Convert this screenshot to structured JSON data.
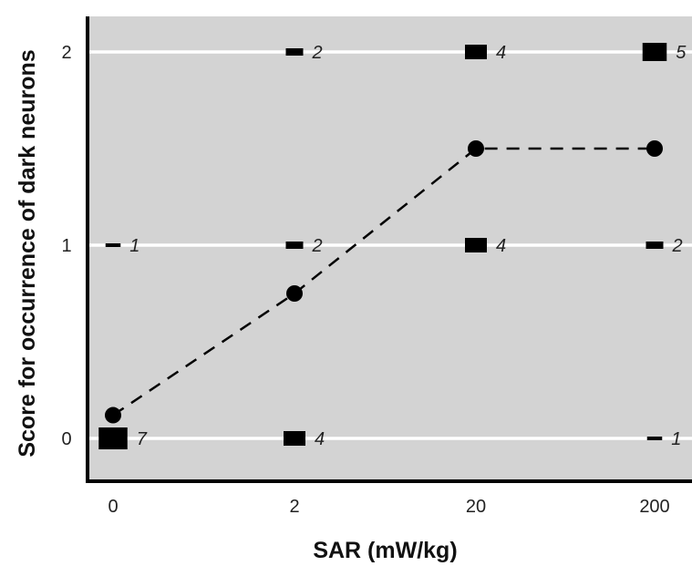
{
  "chart_data": {
    "type": "scatter",
    "title": "",
    "xlabel": "SAR (mW/kg)",
    "ylabel": "Score for occurrence of dark neurons",
    "categories": [
      "0",
      "2",
      "20",
      "200"
    ],
    "y_ticks": [
      "0",
      "1",
      "2"
    ],
    "ylim": [
      -0.2,
      2.2
    ],
    "grid": true,
    "series": [
      {
        "marker": "square",
        "points": [
          {
            "x": "0",
            "y": 0,
            "count": 7
          },
          {
            "x": "0",
            "y": 1,
            "count": 1
          },
          {
            "x": "2",
            "y": 0,
            "count": 4
          },
          {
            "x": "2",
            "y": 1,
            "count": 2
          },
          {
            "x": "2",
            "y": 2,
            "count": 2
          },
          {
            "x": "20",
            "y": 1,
            "count": 4
          },
          {
            "x": "20",
            "y": 2,
            "count": 4
          },
          {
            "x": "200",
            "y": 0,
            "count": 1
          },
          {
            "x": "200",
            "y": 1,
            "count": 2
          },
          {
            "x": "200",
            "y": 2,
            "count": 5
          }
        ]
      },
      {
        "marker": "circle",
        "line": "dashed",
        "points": [
          {
            "x": "0",
            "y": 0.12
          },
          {
            "x": "2",
            "y": 0.75
          },
          {
            "x": "20",
            "y": 1.5
          },
          {
            "x": "200",
            "y": 1.5
          }
        ]
      }
    ],
    "colors": {
      "plot_background": "#d3d3d3",
      "gridline": "#ffffff",
      "marker": "#000000"
    }
  }
}
